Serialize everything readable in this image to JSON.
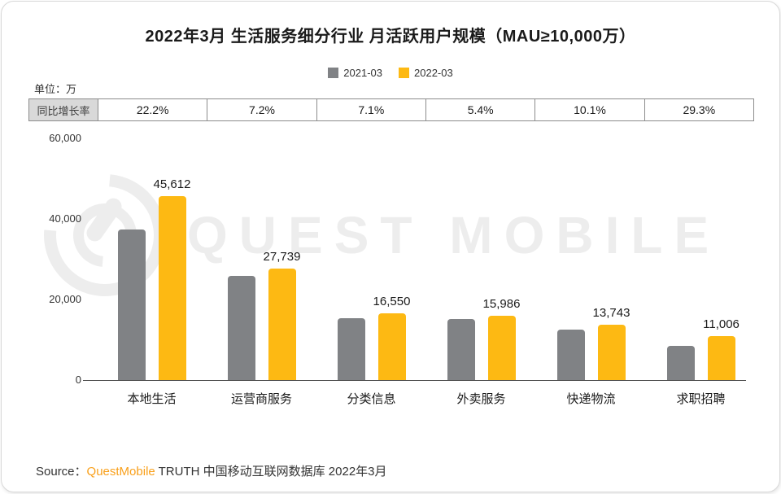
{
  "title": "2022年3月 生活服务细分行业 月活跃用户规模（MAU≥10,000万）",
  "unit_label": "单位：万",
  "growth_label": "同比增长率",
  "watermark": "QUEST MOBILE",
  "legend": [
    {
      "label": "2021-03",
      "color": "#808285"
    },
    {
      "label": "2022-03",
      "color": "#fdb913"
    }
  ],
  "source": {
    "prefix": "Source：",
    "brand": "QuestMobile",
    "suffix": " TRUTH 中国移动互联网数据库 2022年3月"
  },
  "chart_data": {
    "type": "bar",
    "categories": [
      "本地生活",
      "运营商服务",
      "分类信息",
      "外卖服务",
      "快递物流",
      "求职招聘"
    ],
    "series": [
      {
        "name": "2021-03",
        "color": "#808285",
        "values": [
          37325,
          25876,
          15453,
          15167,
          12482,
          8512
        ]
      },
      {
        "name": "2022-03",
        "color": "#fdb913",
        "values": [
          45612,
          27739,
          16550,
          15986,
          13743,
          11006
        ],
        "labels": [
          "45,612",
          "27,739",
          "16,550",
          "15,986",
          "13,743",
          "11,006"
        ]
      }
    ],
    "yoy_growth": [
      "22.2%",
      "7.2%",
      "7.1%",
      "5.4%",
      "10.1%",
      "29.3%"
    ],
    "y_ticks": [
      "0",
      "20,000",
      "40,000",
      "60,000"
    ],
    "ylim": [
      0,
      60000
    ],
    "ylabel": "单位：万",
    "legend_position": "top",
    "grid": false
  }
}
